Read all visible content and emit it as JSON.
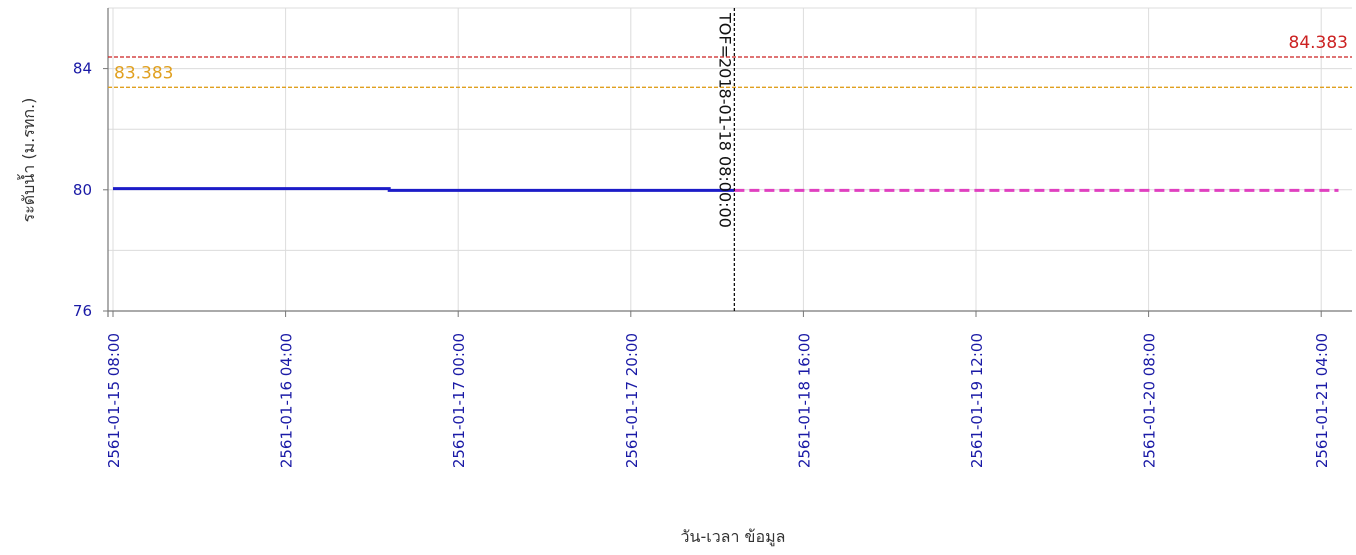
{
  "chart_data": {
    "type": "line",
    "xlabel": "วัน-เวลา ข้อมูล",
    "ylabel": "ระดับน้ำ (ม.รทก.)",
    "ylim": [
      76,
      86
    ],
    "yticks": [
      76,
      80,
      84
    ],
    "x_range": [
      "2561-01-15 08:00",
      "2561-01-21 06:00"
    ],
    "x_ticks": [
      "2561-01-15 08:00",
      "2561-01-16 04:00",
      "2561-01-17 00:00",
      "2561-01-17 20:00",
      "2561-01-18 16:00",
      "2561-01-19 12:00",
      "2561-01-20 08:00",
      "2561-01-21 04:00"
    ],
    "grid": true,
    "series": [
      {
        "style": "observed",
        "color": "#1c1cc8",
        "x": [
          "2561-01-15 08:00",
          "2561-01-16 16:00",
          "2561-01-16 16:00",
          "2561-01-18 08:00"
        ],
        "values": [
          80.04,
          80.04,
          79.98,
          79.98
        ]
      },
      {
        "style": "forecast",
        "color": "#e040c0",
        "x": [
          "2561-01-18 08:00",
          "2561-01-21 06:00"
        ],
        "values": [
          79.98,
          79.98
        ]
      }
    ],
    "reference_lines": [
      {
        "label": "84.383",
        "value": 84.383,
        "color": "#cc2222"
      },
      {
        "label": "83.383",
        "value": 83.383,
        "color": "#e0a020"
      }
    ],
    "marker": {
      "label": "TOF=2018-01-18 08:00:00",
      "x": "2561-01-18 08:00"
    }
  }
}
